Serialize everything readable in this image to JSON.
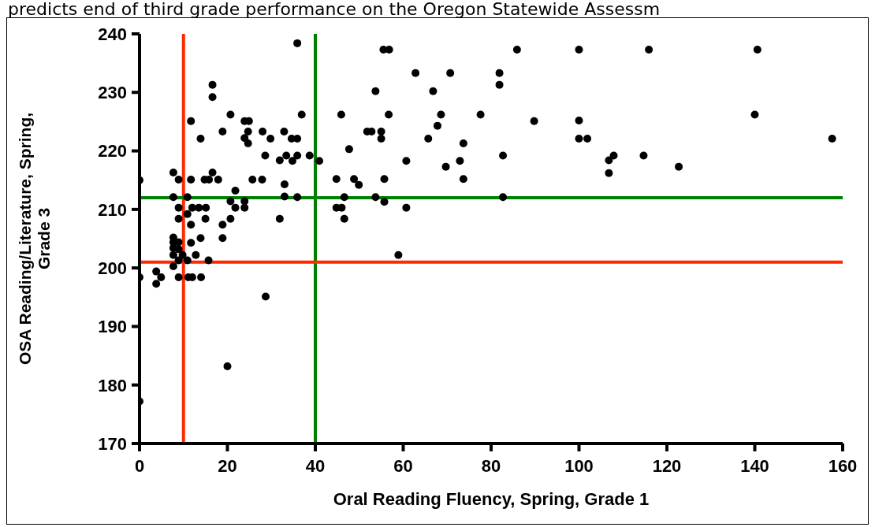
{
  "chart_data": {
    "type": "scatter",
    "title": "predicts end of third grade performance on the Oregon Statewide Assessm",
    "xlabel": "Oral Reading Fluency, Spring, Grade 1",
    "ylabel": "OSA Reading/Literature, Spring, Grade 3",
    "xlim": [
      0,
      160
    ],
    "ylim": [
      170,
      240
    ],
    "xticks": [
      0,
      20,
      40,
      60,
      80,
      100,
      120,
      140,
      160
    ],
    "yticks": [
      170,
      180,
      190,
      200,
      210,
      220,
      230,
      240
    ],
    "marker": "circle",
    "series": [
      {
        "color": "#000000",
        "x": [
          0,
          0,
          0,
          3.8,
          3.8,
          4.9,
          7.7,
          8.9,
          11.7,
          7.7,
          10.9,
          8.9,
          10.9,
          8.9,
          11.7,
          7.7,
          7.7,
          8.9,
          7.7,
          8.9,
          7.7,
          9.8,
          8.9,
          10.9,
          7.7,
          12.8,
          11.7,
          13.9,
          12,
          13.5,
          15.1,
          15,
          15.7,
          8.9,
          11.1,
          12,
          14,
          18.9,
          18.9,
          20.7,
          20.7,
          21.8,
          21.8,
          23.9,
          23.9,
          14.8,
          15.8,
          16.6,
          17.9,
          25.7,
          27.9,
          28.7,
          20,
          33,
          33,
          31.9,
          28.6,
          31.9,
          33.4,
          16.6,
          16.6,
          11.7,
          20.7,
          18.9,
          13.9,
          23.9,
          24.9,
          24.7,
          23.9,
          24.7,
          28,
          29.8,
          32.9,
          35.9,
          55.5,
          56.8,
          85.9,
          62.8,
          70.7,
          81.9,
          81.9,
          53.7,
          66.8,
          36.9,
          45.9,
          56.7,
          68.6,
          77.6,
          89.8,
          67.8,
          51.8,
          52.8,
          55,
          55,
          34.6,
          35.9,
          65.7,
          73.7,
          47.7,
          35.9,
          34.8,
          38.7,
          40.9,
          60.7,
          82.7,
          72.9,
          69.7,
          44.8,
          48.8,
          49.9,
          55.7,
          73.7,
          35.9,
          46.6,
          53.7,
          55.7,
          82.7,
          44.8,
          46,
          60.7,
          46.6,
          58.9,
          100,
          115.9,
          140.6,
          100,
          100,
          101.9,
          140,
          157.6,
          107.9,
          106.8,
          106.8,
          114.7,
          122.7
        ],
        "values": [
          215,
          198.4,
          177.2,
          199.4,
          197.3,
          198.4,
          216.3,
          215.1,
          215.1,
          212.1,
          212.1,
          210.3,
          209.2,
          208.4,
          207.4,
          205.2,
          204.4,
          204.4,
          203.4,
          203.2,
          202.2,
          202.2,
          201.3,
          201.3,
          200.3,
          202.2,
          204.3,
          205.1,
          210.3,
          210.3,
          210.3,
          208.4,
          201.3,
          198.4,
          198.4,
          198.4,
          198.4,
          207.4,
          205.1,
          208.4,
          211.4,
          210.3,
          213.2,
          211.4,
          210.3,
          215.1,
          215.1,
          216.3,
          215.1,
          215.1,
          215.1,
          195.1,
          183.2,
          212.2,
          214.3,
          208.4,
          219.2,
          218.4,
          219.2,
          231.3,
          229.2,
          225.1,
          226.2,
          223.3,
          222.1,
          225.1,
          225.1,
          223.3,
          222.2,
          221.3,
          223.3,
          222.1,
          223.3,
          238.4,
          237.3,
          237.3,
          237.3,
          233.3,
          233.3,
          233.3,
          231.3,
          230.2,
          230.2,
          226.2,
          226.2,
          226.2,
          226.2,
          226.2,
          225.1,
          224.3,
          223.3,
          223.3,
          223.3,
          222.1,
          222.1,
          222.1,
          222.1,
          221.3,
          220.3,
          219.2,
          218.3,
          219.2,
          218.3,
          218.3,
          219.2,
          218.3,
          217.3,
          215.2,
          215.2,
          214.2,
          215.2,
          215.2,
          212.1,
          212.1,
          212.1,
          211.3,
          212.1,
          210.3,
          210.3,
          210.3,
          208.4,
          202.2,
          237.3,
          237.3,
          237.3,
          225.2,
          222.1,
          222.1,
          226.2,
          222.1,
          219.2,
          218.4,
          216.2,
          219.2,
          217.3
        ]
      }
    ],
    "ref_lines": [
      {
        "axis": "x",
        "value": 10,
        "color": "#ff2a00"
      },
      {
        "axis": "x",
        "value": 40,
        "color": "#008000"
      },
      {
        "axis": "y",
        "value": 201,
        "color": "#ff2a00"
      },
      {
        "axis": "y",
        "value": 212,
        "color": "#008000"
      }
    ]
  }
}
